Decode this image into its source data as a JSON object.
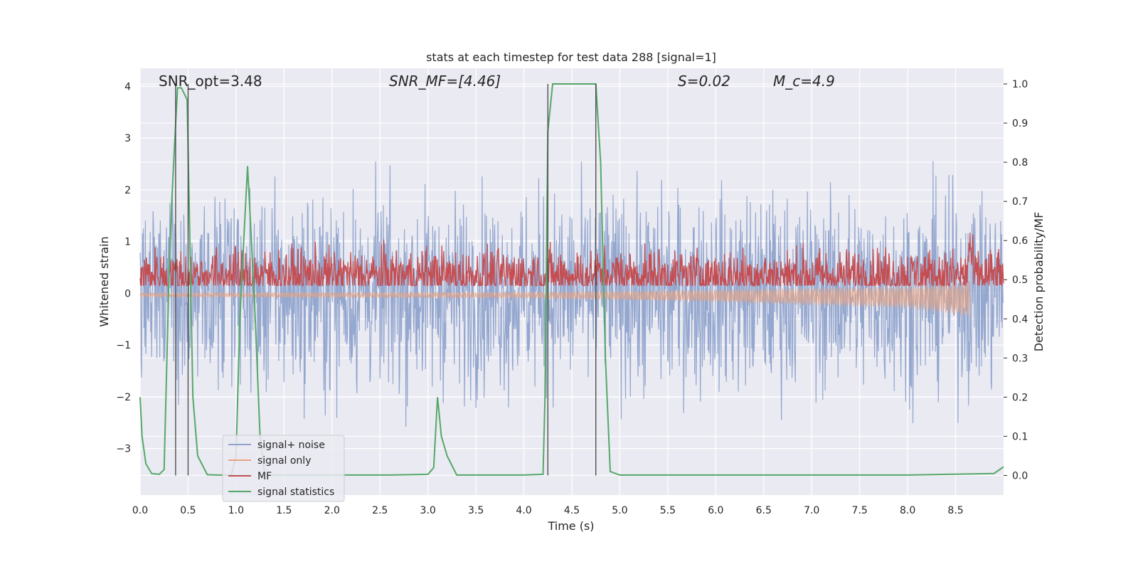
{
  "chart_data": {
    "type": "line",
    "title": "stats at each timestep for test data 288 [signal=1]",
    "xlabel": "Time (s)",
    "ylabel": "Whitened strain",
    "ylabel_right": "Detection probability/MF",
    "xlim": [
      0,
      9.0
    ],
    "ylim": [
      -3.9,
      4.35
    ],
    "ylim_right": [
      -0.05,
      1.04
    ],
    "x_ticks": [
      "0.0",
      "0.5",
      "1.0",
      "1.5",
      "2.0",
      "2.5",
      "3.0",
      "3.5",
      "4.0",
      "4.5",
      "5.0",
      "5.5",
      "6.0",
      "6.5",
      "7.0",
      "7.5",
      "8.0",
      "8.5"
    ],
    "y_ticks": [
      "−3",
      "−2",
      "−1",
      "0",
      "1",
      "2",
      "3",
      "4"
    ],
    "y_ticks_right": [
      "0.0",
      "0.1",
      "0.2",
      "0.3",
      "0.4",
      "0.5",
      "0.6",
      "0.7",
      "0.8",
      "0.9",
      "1.0"
    ],
    "grid": true,
    "legend_position": "lower-left",
    "annotations": {
      "snr_opt": "SNR_opt=3.48",
      "snr_mf": "SNR_MF=[4.46]",
      "spin": "S=0.02",
      "chirp_mass": "M_c=4.9"
    },
    "vertical_lines_x": [
      0.37,
      0.5,
      4.25,
      4.75
    ],
    "series": [
      {
        "name": "signal+ noise",
        "color": "#8fa3cc",
        "axis": "left",
        "kind": "noise",
        "sigma": 0.95,
        "range_x": [
          0,
          9.0
        ]
      },
      {
        "name": "signal only",
        "color": "#e8a382",
        "axis": "left",
        "kind": "chirp",
        "envelope": [
          [
            0,
            0.04
          ],
          [
            4.0,
            0.06
          ],
          [
            6.0,
            0.12
          ],
          [
            8.0,
            0.22
          ],
          [
            8.65,
            0.35
          ]
        ],
        "range_x": [
          0,
          8.65
        ]
      },
      {
        "name": "MF",
        "color": "#c44e52",
        "axis": "right",
        "kind": "band",
        "baseline": 0.51,
        "amplitude": 0.035,
        "peak": {
          "x": 8.65,
          "y": 0.6
        },
        "range_x": [
          0,
          9.0
        ]
      },
      {
        "name": "signal statistics",
        "color": "#55a868",
        "axis": "right",
        "x": [
          0.0,
          0.02,
          0.06,
          0.12,
          0.2,
          0.25,
          0.3,
          0.33,
          0.36,
          0.39,
          0.43,
          0.49,
          0.55,
          0.6,
          0.7,
          0.8,
          0.95,
          1.0,
          1.04,
          1.08,
          1.12,
          1.16,
          1.2,
          1.25,
          1.3,
          1.4,
          2.0,
          2.6,
          3.0,
          3.06,
          3.1,
          3.14,
          3.2,
          3.3,
          4.0,
          4.2,
          4.22,
          4.25,
          4.3,
          4.4,
          4.5,
          4.6,
          4.7,
          4.75,
          4.8,
          4.85,
          4.9,
          5.0,
          6.0,
          7.0,
          8.0,
          8.9,
          9.0
        ],
        "y": [
          0.2,
          0.1,
          0.03,
          0.005,
          0.003,
          0.015,
          0.5,
          0.7,
          0.85,
          0.99,
          0.99,
          0.96,
          0.2,
          0.05,
          0.002,
          0.001,
          0.001,
          0.05,
          0.4,
          0.6,
          0.79,
          0.6,
          0.4,
          0.1,
          0.002,
          0.001,
          0.001,
          0.001,
          0.003,
          0.02,
          0.2,
          0.1,
          0.05,
          0.001,
          0.001,
          0.003,
          0.2,
          0.88,
          1.0,
          1.0,
          1.0,
          1.0,
          1.0,
          1.0,
          0.8,
          0.3,
          0.01,
          0.001,
          0.001,
          0.001,
          0.001,
          0.005,
          0.022
        ]
      }
    ]
  }
}
